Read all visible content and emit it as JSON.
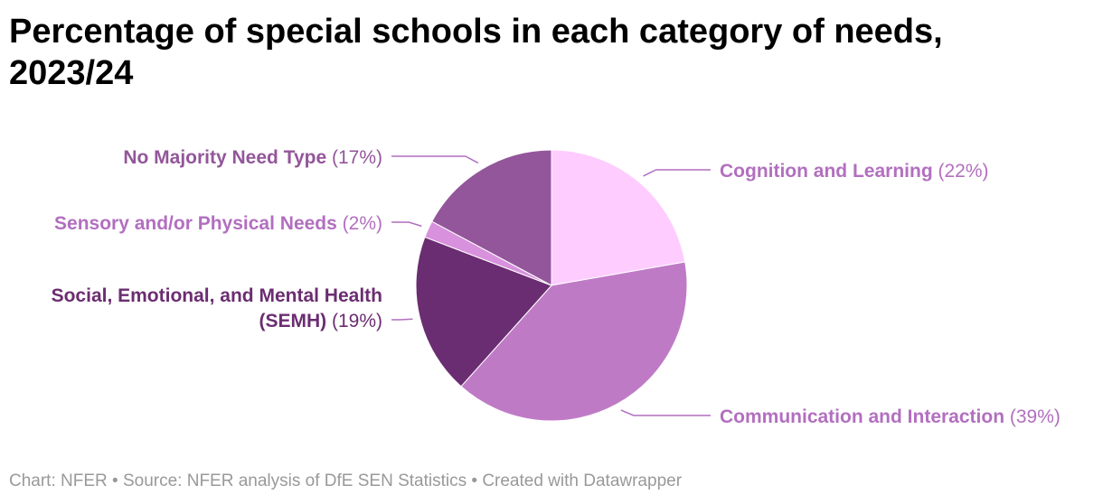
{
  "title": "Percentage of special schools in each category of needs, 2023/24",
  "footer": {
    "chart_credit": "Chart: NFER",
    "source": "Source: NFER analysis of DfE SEN Statistics",
    "created_with": "Created with Datawrapper",
    "separator": "•"
  },
  "chart_data": {
    "type": "pie",
    "title": "Percentage of special schools in each category of needs, 2023/24",
    "unit": "%",
    "slices": [
      {
        "label": "Cognition and Learning",
        "value": 22,
        "color": "#ffccff"
      },
      {
        "label": "Communication and Interaction",
        "value": 39,
        "color": "#bf7ac6"
      },
      {
        "label": "Social, Emotional, and Mental Health (SEMH)",
        "value": 19,
        "color": "#6b2d71"
      },
      {
        "label": "Sensory and/or Physical Needs",
        "value": 2,
        "color": "#d891dd"
      },
      {
        "label": "No Majority Need Type",
        "value": 17,
        "color": "#93569a"
      }
    ]
  },
  "labels": [
    {
      "name_lines": [
        "Cognition and Learning"
      ],
      "pct_text": "(22%)"
    },
    {
      "name_lines": [
        "Communication and Interaction"
      ],
      "pct_text": "(39%)"
    },
    {
      "name_lines": [
        "Social, Emotional, and Mental Health",
        "(SEMH)"
      ],
      "pct_text": "(19%)"
    },
    {
      "name_lines": [
        "Sensory and/or Physical Needs"
      ],
      "pct_text": "(2%)"
    },
    {
      "name_lines": [
        "No Majority Need Type"
      ],
      "pct_text": "(17%)"
    }
  ]
}
